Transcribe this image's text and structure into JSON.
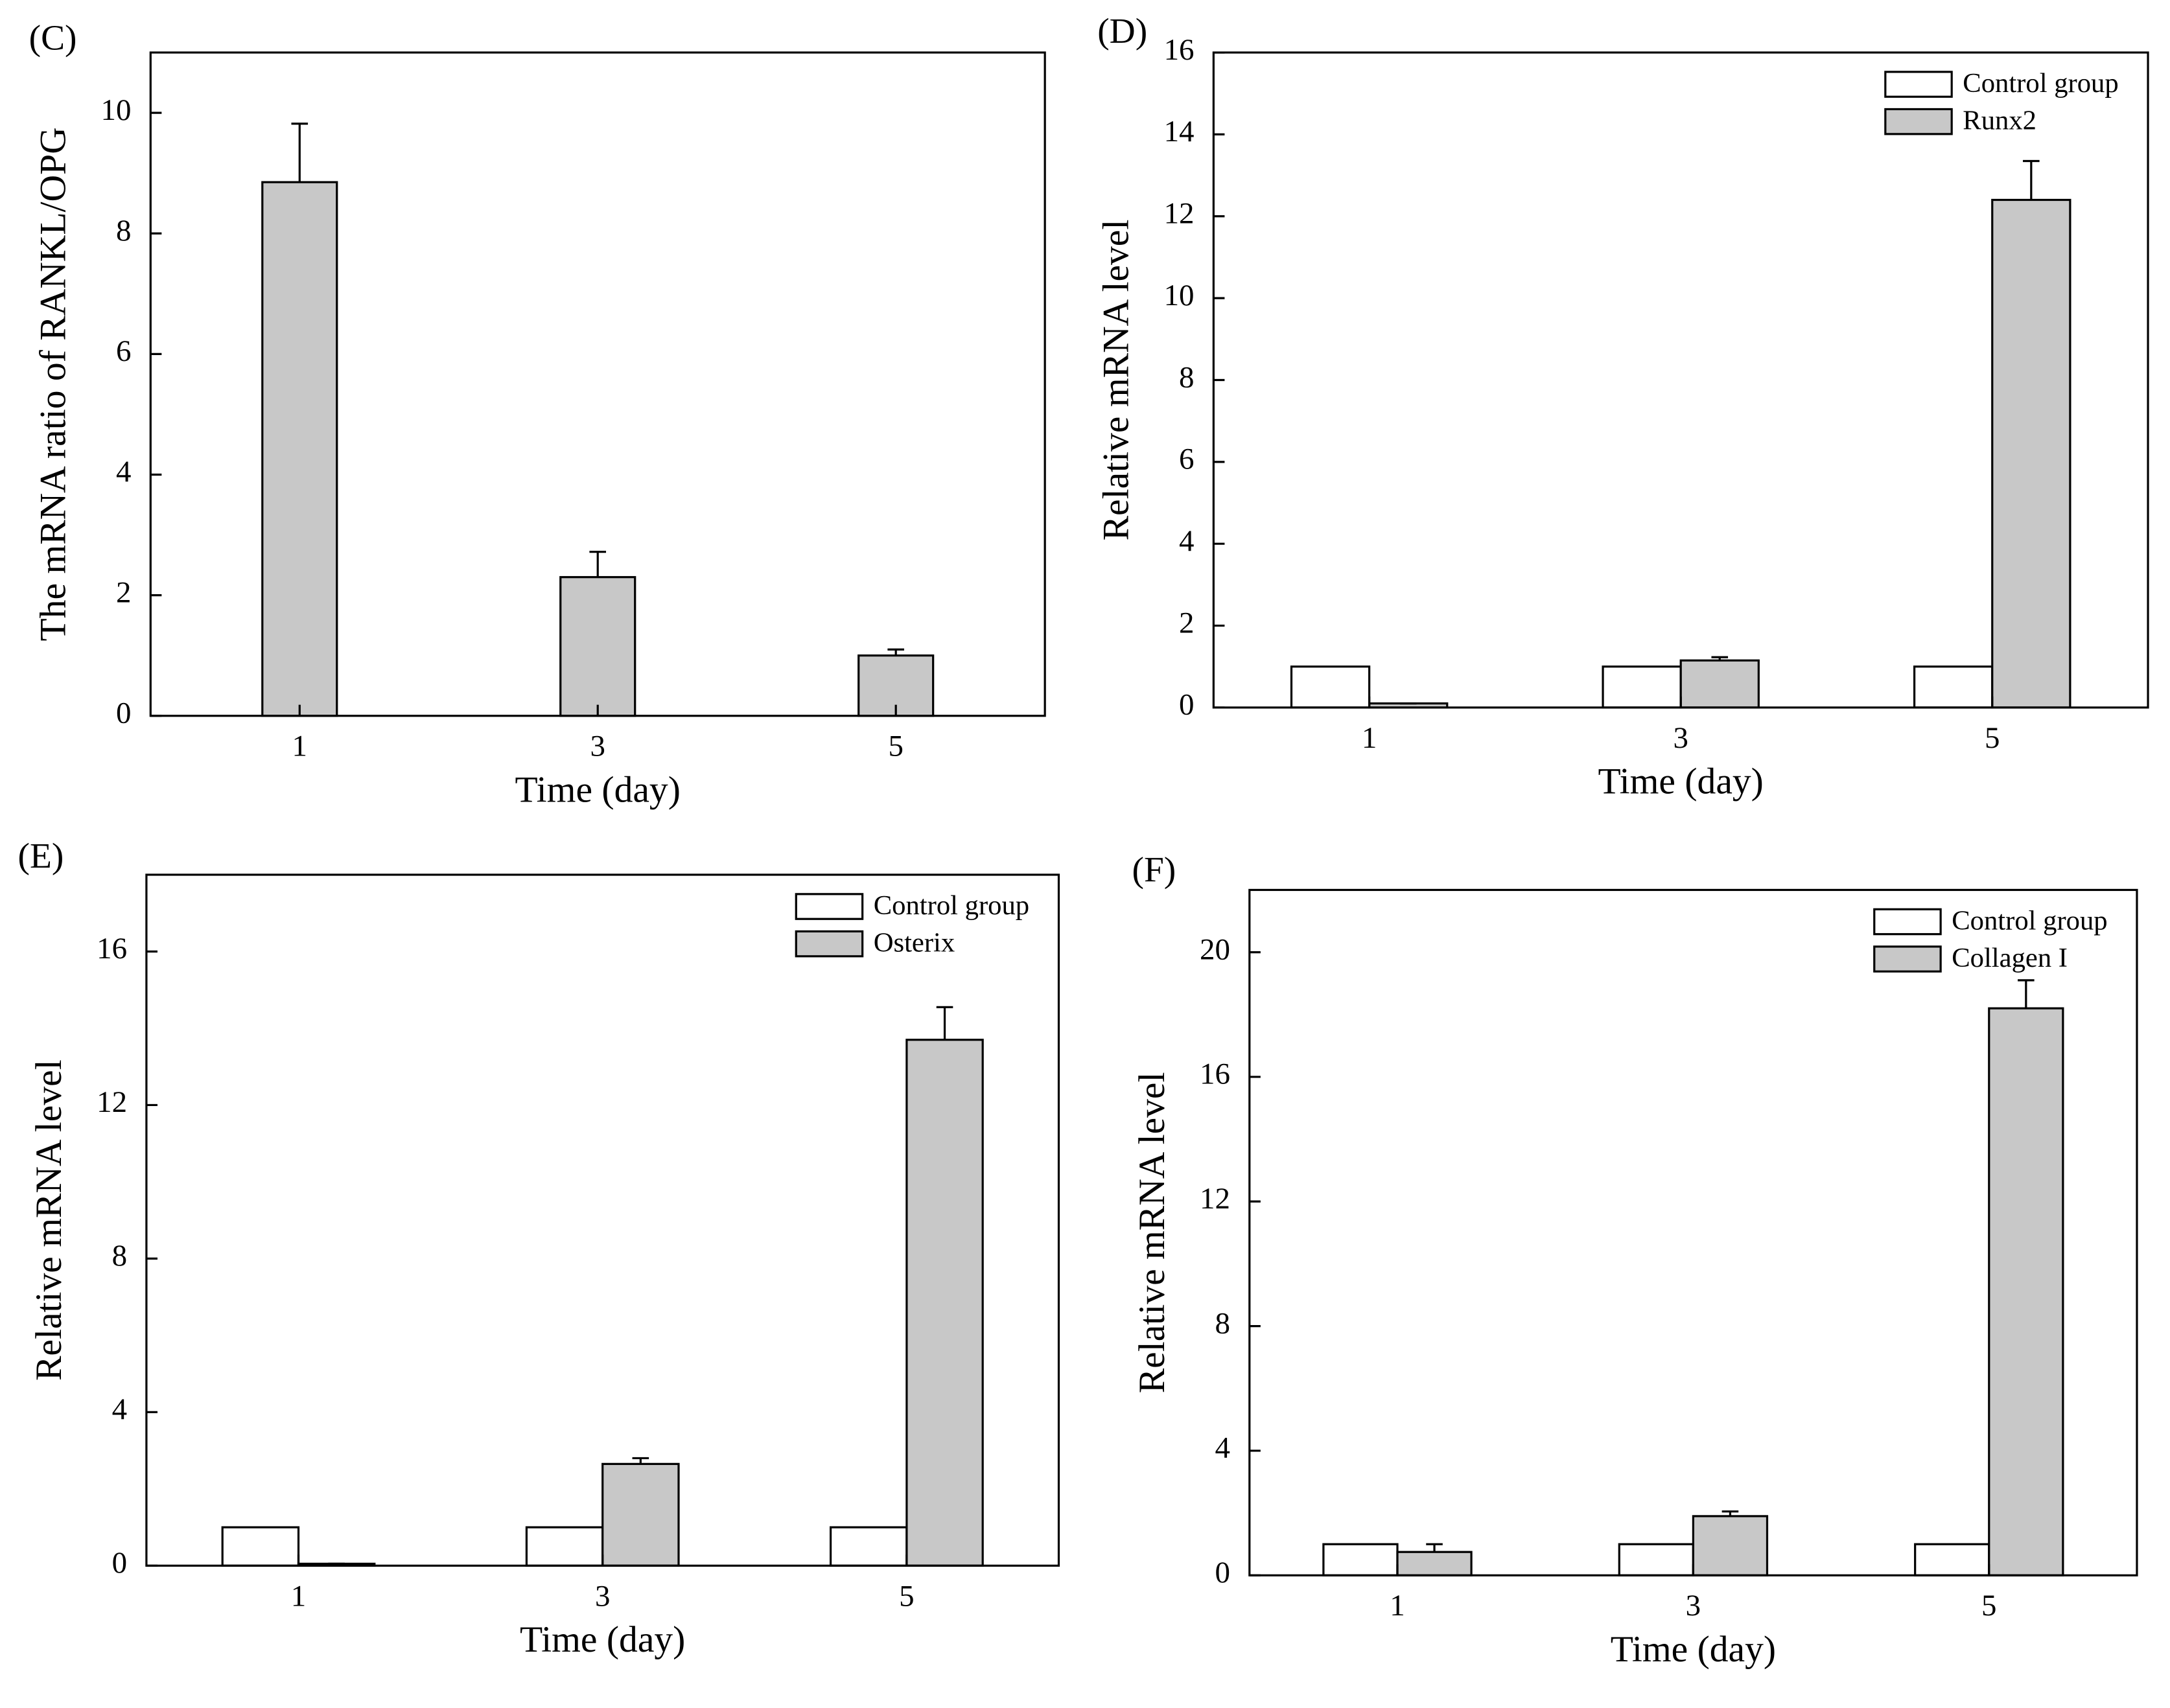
{
  "chart_data": [
    {
      "type": "bar",
      "title": "(C)",
      "x_label": "Time (day)",
      "y_label": "The mRNA ratio of RANKL/OPG",
      "categories": [
        "1",
        "3",
        "5"
      ],
      "values": [
        8.85,
        2.3,
        1.0
      ],
      "errors": [
        0.97,
        0.42,
        0.1
      ],
      "color": "#c8c8c8",
      "ylim": [
        0,
        11
      ],
      "yticks": [
        0,
        2,
        4,
        6,
        8,
        10
      ]
    },
    {
      "type": "bar",
      "title": "(D)",
      "x_label": "Time (day)",
      "y_label": "Relative mRNA level",
      "categories": [
        "1",
        "3",
        "5"
      ],
      "series": [
        {
          "name": "Control group",
          "color": "#ffffff",
          "values": [
            1,
            1,
            1
          ]
        },
        {
          "name": "Runx2",
          "color": "#c8c8c8",
          "values": [
            0.1,
            1.15,
            12.4
          ],
          "errors": [
            0,
            0.08,
            0.95
          ]
        }
      ],
      "ylim": [
        0,
        16
      ],
      "yticks": [
        0,
        2,
        4,
        6,
        8,
        10,
        12,
        14,
        16
      ],
      "legend": "upper right"
    },
    {
      "type": "bar",
      "title": "(E)",
      "x_label": "Time (day)",
      "y_label": "Relative mRNA level",
      "categories": [
        "1",
        "3",
        "5"
      ],
      "series": [
        {
          "name": "Control group",
          "color": "#ffffff",
          "values": [
            1,
            1,
            1
          ]
        },
        {
          "name": "Osterix",
          "color": "#c8c8c8",
          "values": [
            0.05,
            2.65,
            13.7
          ],
          "errors": [
            0,
            0.15,
            0.85
          ]
        }
      ],
      "ylim": [
        0,
        18
      ],
      "yticks": [
        0,
        4,
        8,
        12,
        16
      ],
      "legend": "upper right"
    },
    {
      "type": "bar",
      "title": "(F)",
      "x_label": "Time (day)",
      "y_label": "Relative mRNA level",
      "categories": [
        "1",
        "3",
        "5"
      ],
      "series": [
        {
          "name": "Control group",
          "color": "#ffffff",
          "values": [
            1,
            1,
            1
          ]
        },
        {
          "name": "Collagen I",
          "color": "#c8c8c8",
          "values": [
            0.75,
            1.9,
            18.2
          ],
          "errors": [
            0.25,
            0.15,
            0.9
          ]
        }
      ],
      "ylim": [
        0,
        22
      ],
      "yticks": [
        0,
        4,
        8,
        12,
        16,
        20
      ],
      "legend": "upper right"
    }
  ]
}
